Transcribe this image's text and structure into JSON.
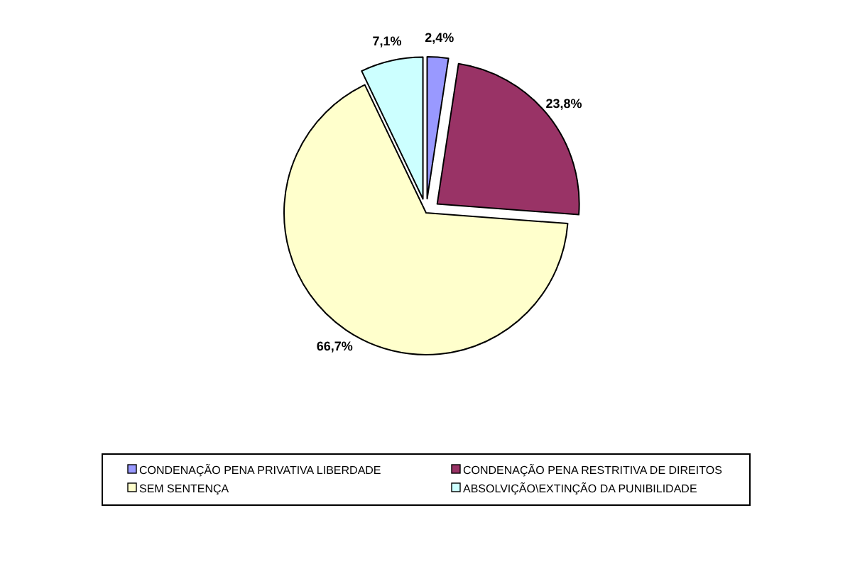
{
  "chart_data": {
    "type": "pie",
    "categories": [
      "CONDENAÇÃO PENA PRIVATIVA LIBERDADE",
      "CONDENAÇÃO PENA RESTRITIVA DE DIREITOS",
      "SEM SENTENÇA",
      "ABSOLVIÇÃO\\EXTINÇÃO DA PUNIBILIDADE"
    ],
    "values": [
      2.4,
      23.8,
      66.7,
      7.1
    ],
    "colors": [
      "#9999ff",
      "#993366",
      "#ffffcc",
      "#ccffff"
    ],
    "value_labels": [
      "2,4%",
      "23,8%",
      "66,7%",
      "7,1%"
    ],
    "legend": "bottom"
  }
}
